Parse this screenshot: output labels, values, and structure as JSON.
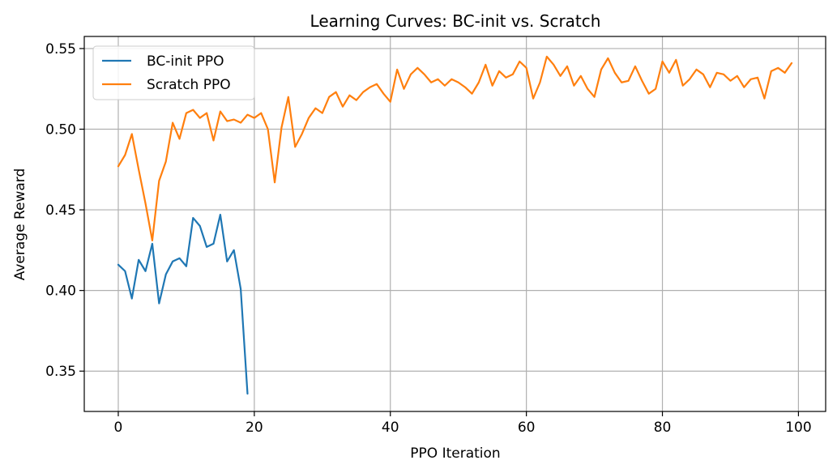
{
  "chart_data": {
    "type": "line",
    "title": "Learning Curves: BC-init vs. Scratch",
    "xlabel": "PPO Iteration",
    "ylabel": "Average Reward",
    "xlim": [
      -5,
      104
    ],
    "ylim": [
      0.325,
      0.5575
    ],
    "xticks": [
      0,
      20,
      40,
      60,
      80,
      100
    ],
    "xtick_labels": [
      "0",
      "20",
      "40",
      "60",
      "80",
      "100"
    ],
    "yticks": [
      0.35,
      0.4,
      0.45,
      0.5,
      0.55
    ],
    "ytick_labels": [
      "0.35",
      "0.40",
      "0.45",
      "0.50",
      "0.55"
    ],
    "grid": true,
    "legend_position": "top-left",
    "series": [
      {
        "name": "BC-init PPO",
        "color": "#1f77b4",
        "x": [
          0,
          1,
          2,
          3,
          4,
          5,
          6,
          7,
          8,
          9,
          10,
          11,
          12,
          13,
          14,
          15,
          16,
          17,
          18,
          19
        ],
        "y": [
          0.416,
          0.412,
          0.395,
          0.419,
          0.412,
          0.429,
          0.392,
          0.41,
          0.418,
          0.42,
          0.415,
          0.445,
          0.44,
          0.427,
          0.429,
          0.447,
          0.418,
          0.425,
          0.401,
          0.336
        ]
      },
      {
        "name": "Scratch PPO",
        "color": "#ff7f0e",
        "x": [
          0,
          1,
          2,
          3,
          4,
          5,
          6,
          7,
          8,
          9,
          10,
          11,
          12,
          13,
          14,
          15,
          16,
          17,
          18,
          19,
          20,
          21,
          22,
          23,
          24,
          25,
          26,
          27,
          28,
          29,
          30,
          31,
          32,
          33,
          34,
          35,
          36,
          37,
          38,
          39,
          40,
          41,
          42,
          43,
          44,
          45,
          46,
          47,
          48,
          49,
          50,
          51,
          52,
          53,
          54,
          55,
          56,
          57,
          58,
          59,
          60,
          61,
          62,
          63,
          64,
          65,
          66,
          67,
          68,
          69,
          70,
          71,
          72,
          73,
          74,
          75,
          76,
          77,
          78,
          79,
          80,
          81,
          82,
          83,
          84,
          85,
          86,
          87,
          88,
          89,
          90,
          91,
          92,
          93,
          94,
          95,
          96,
          97,
          98,
          99
        ],
        "y": [
          0.477,
          0.484,
          0.497,
          0.475,
          0.454,
          0.431,
          0.468,
          0.48,
          0.504,
          0.494,
          0.51,
          0.512,
          0.507,
          0.51,
          0.493,
          0.511,
          0.505,
          0.506,
          0.504,
          0.509,
          0.507,
          0.51,
          0.5,
          0.467,
          0.501,
          0.52,
          0.489,
          0.497,
          0.507,
          0.513,
          0.51,
          0.52,
          0.523,
          0.514,
          0.521,
          0.518,
          0.523,
          0.526,
          0.528,
          0.522,
          0.517,
          0.537,
          0.525,
          0.534,
          0.538,
          0.534,
          0.529,
          0.531,
          0.527,
          0.531,
          0.529,
          0.526,
          0.522,
          0.529,
          0.54,
          0.527,
          0.536,
          0.532,
          0.534,
          0.542,
          0.538,
          0.519,
          0.529,
          0.545,
          0.54,
          0.533,
          0.539,
          0.527,
          0.533,
          0.525,
          0.52,
          0.537,
          0.544,
          0.535,
          0.529,
          0.53,
          0.539,
          0.53,
          0.522,
          0.525,
          0.542,
          0.535,
          0.543,
          0.527,
          0.531,
          0.537,
          0.534,
          0.526,
          0.535,
          0.534,
          0.53,
          0.533,
          0.526,
          0.531,
          0.532,
          0.519,
          0.536,
          0.538,
          0.535,
          0.541
        ]
      }
    ]
  }
}
